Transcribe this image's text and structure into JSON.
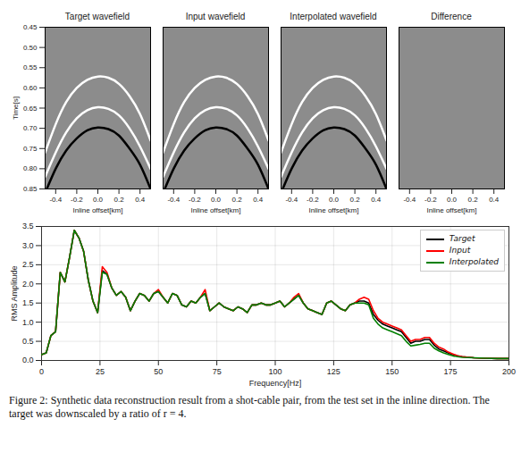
{
  "chart_data": [
    {
      "type": "image",
      "title": "Target wavefield",
      "xlabel": "Inline offset[km]",
      "ylabel": "Time[s]",
      "xlim": [
        -0.5,
        0.5
      ],
      "ylim": [
        0.45,
        0.85
      ],
      "xticks": [
        -0.4,
        -0.2,
        {
          "value": 0,
          "label": "0.0"
        },
        0.2,
        0.4
      ],
      "yticks": [
        0.45,
        {
          "value": 0.5,
          "label": "0.50"
        },
        0.55,
        {
          "value": 0.6,
          "label": "0.60"
        },
        0.65,
        {
          "value": 0.7,
          "label": "0.70"
        },
        0.75,
        {
          "value": 0.8,
          "label": "0.80"
        },
        0.85
      ],
      "events": [
        {
          "color": "white",
          "x": [
            -0.5,
            -0.4,
            -0.3,
            -0.2,
            -0.1,
            0,
            0.1,
            0.2,
            0.3,
            0.4,
            0.5
          ],
          "y": [
            0.76,
            0.69,
            0.635,
            0.6,
            0.58,
            0.572,
            0.575,
            0.59,
            0.62,
            0.665,
            0.73
          ]
        },
        {
          "color": "white",
          "x": [
            -0.5,
            -0.4,
            -0.3,
            -0.2,
            -0.1,
            0,
            0.1,
            0.2,
            0.3,
            0.4,
            0.5
          ],
          "y": [
            0.82,
            0.76,
            0.71,
            0.675,
            0.655,
            0.648,
            0.652,
            0.668,
            0.7,
            0.745,
            0.8
          ]
        },
        {
          "color": "black",
          "x": [
            -0.5,
            -0.4,
            -0.3,
            -0.2,
            -0.1,
            0,
            0.1,
            0.2,
            0.3,
            0.4,
            0.5
          ],
          "y": [
            0.86,
            0.8,
            0.755,
            0.725,
            0.705,
            0.698,
            0.702,
            0.718,
            0.75,
            0.79,
            0.85
          ]
        }
      ]
    },
    {
      "type": "image",
      "title": "Input wavefield",
      "xlabel": "Inline offset[km]",
      "tick_labels": "x",
      "xlim": [
        -0.5,
        0.5
      ],
      "ylim": [
        0.45,
        0.85
      ],
      "xticks": [
        -0.4,
        -0.2,
        {
          "value": 0,
          "label": "0.0"
        },
        0.2,
        0.4
      ],
      "events": [
        {
          "color": "white",
          "x": [
            -0.5,
            -0.4,
            -0.3,
            -0.2,
            -0.1,
            0,
            0.1,
            0.2,
            0.3,
            0.4,
            0.5
          ],
          "y": [
            0.76,
            0.69,
            0.635,
            0.6,
            0.58,
            0.572,
            0.575,
            0.59,
            0.62,
            0.665,
            0.73
          ]
        },
        {
          "color": "white",
          "x": [
            -0.5,
            -0.4,
            -0.3,
            -0.2,
            -0.1,
            0,
            0.1,
            0.2,
            0.3,
            0.4,
            0.5
          ],
          "y": [
            0.82,
            0.76,
            0.71,
            0.675,
            0.655,
            0.648,
            0.652,
            0.668,
            0.7,
            0.745,
            0.8
          ]
        },
        {
          "color": "black",
          "x": [
            -0.5,
            -0.4,
            -0.3,
            -0.2,
            -0.1,
            0,
            0.1,
            0.2,
            0.3,
            0.4,
            0.5
          ],
          "y": [
            0.86,
            0.8,
            0.755,
            0.725,
            0.705,
            0.698,
            0.702,
            0.718,
            0.75,
            0.79,
            0.85
          ]
        }
      ]
    },
    {
      "type": "image",
      "title": "Interpolated wavefield",
      "xlabel": "Inline offset[km]",
      "tick_labels": "x",
      "xlim": [
        -0.5,
        0.5
      ],
      "ylim": [
        0.45,
        0.85
      ],
      "xticks": [
        -0.4,
        -0.2,
        {
          "value": 0,
          "label": "0.0"
        },
        0.2,
        0.4
      ],
      "events": [
        {
          "color": "white",
          "x": [
            -0.5,
            -0.4,
            -0.3,
            -0.2,
            -0.1,
            0,
            0.1,
            0.2,
            0.3,
            0.4,
            0.5
          ],
          "y": [
            0.76,
            0.69,
            0.635,
            0.6,
            0.58,
            0.572,
            0.575,
            0.59,
            0.62,
            0.665,
            0.73
          ]
        },
        {
          "color": "white",
          "x": [
            -0.5,
            -0.4,
            -0.3,
            -0.2,
            -0.1,
            0,
            0.1,
            0.2,
            0.3,
            0.4,
            0.5
          ],
          "y": [
            0.82,
            0.76,
            0.71,
            0.675,
            0.655,
            0.648,
            0.652,
            0.668,
            0.7,
            0.745,
            0.8
          ]
        },
        {
          "color": "black",
          "x": [
            -0.5,
            -0.4,
            -0.3,
            -0.2,
            -0.1,
            0,
            0.1,
            0.2,
            0.3,
            0.4,
            0.5
          ],
          "y": [
            0.86,
            0.8,
            0.755,
            0.725,
            0.705,
            0.698,
            0.702,
            0.718,
            0.75,
            0.79,
            0.85
          ]
        }
      ]
    },
    {
      "type": "image",
      "title": "Difference",
      "xlabel": "Inline offset[km]",
      "tick_labels": "x",
      "xlim": [
        -0.5,
        0.5
      ],
      "ylim": [
        0.45,
        0.85
      ],
      "xticks": [
        -0.4,
        -0.2,
        {
          "value": 0,
          "label": "0.0"
        },
        0.2,
        0.4
      ],
      "events": []
    },
    {
      "type": "line",
      "xlabel": "Frequency[Hz]",
      "ylabel": "RMS Amplitude",
      "xlim": [
        0,
        200
      ],
      "ylim": [
        0,
        3.5
      ],
      "xticks": [
        0,
        25,
        50,
        75,
        100,
        125,
        150,
        175,
        200
      ],
      "yticks": [
        {
          "value": 0,
          "label": "0.0"
        },
        0.5,
        {
          "value": 1,
          "label": "1.0"
        },
        1.5,
        {
          "value": 2,
          "label": "2.0"
        },
        2.5,
        {
          "value": 3,
          "label": "3.0"
        },
        3.5
      ],
      "grid": true,
      "legend": "upper right",
      "x": [
        0,
        2,
        4,
        6,
        8,
        10,
        12,
        14,
        16,
        18,
        20,
        22,
        24,
        26,
        28,
        30,
        32,
        34,
        36,
        38,
        40,
        42,
        44,
        46,
        48,
        50,
        52,
        54,
        56,
        58,
        60,
        62,
        64,
        66,
        68,
        70,
        72,
        74,
        76,
        78,
        80,
        82,
        84,
        86,
        88,
        90,
        92,
        94,
        96,
        98,
        100,
        102,
        104,
        106,
        108,
        110,
        112,
        114,
        116,
        118,
        120,
        122,
        124,
        126,
        128,
        130,
        132,
        134,
        136,
        138,
        140,
        142,
        144,
        146,
        148,
        150,
        152,
        154,
        156,
        158,
        160,
        162,
        164,
        166,
        168,
        170,
        172,
        174,
        176,
        178,
        180,
        185,
        190,
        195,
        200
      ],
      "series": [
        {
          "name": "Target",
          "color": "black",
          "values": [
            0.15,
            0.2,
            0.65,
            0.75,
            2.3,
            2.05,
            2.7,
            3.4,
            3.2,
            2.85,
            2.1,
            1.55,
            1.25,
            2.35,
            2.25,
            1.9,
            1.7,
            1.8,
            1.65,
            1.3,
            1.55,
            1.75,
            1.7,
            1.55,
            1.75,
            1.8,
            1.65,
            1.5,
            1.75,
            1.7,
            1.45,
            1.4,
            1.55,
            1.5,
            1.65,
            1.75,
            1.3,
            1.4,
            1.5,
            1.4,
            1.35,
            1.3,
            1.4,
            1.35,
            1.25,
            1.45,
            1.45,
            1.5,
            1.45,
            1.45,
            1.5,
            1.55,
            1.4,
            1.5,
            1.6,
            1.7,
            1.5,
            1.35,
            1.3,
            1.25,
            1.2,
            1.5,
            1.55,
            1.45,
            1.35,
            1.3,
            1.45,
            1.5,
            1.55,
            1.55,
            1.5,
            1.2,
            1.05,
            0.95,
            0.9,
            0.85,
            0.8,
            0.75,
            0.6,
            0.45,
            0.5,
            0.5,
            0.55,
            0.55,
            0.4,
            0.3,
            0.25,
            0.2,
            0.15,
            0.12,
            0.1,
            0.07,
            0.06,
            0.05,
            0.05
          ]
        },
        {
          "name": "Input",
          "color": "red",
          "values": [
            0.15,
            0.2,
            0.65,
            0.75,
            2.3,
            2.05,
            2.7,
            3.4,
            3.2,
            2.85,
            2.1,
            1.55,
            1.25,
            2.45,
            2.3,
            1.9,
            1.7,
            1.8,
            1.65,
            1.3,
            1.55,
            1.75,
            1.7,
            1.55,
            1.75,
            1.85,
            1.65,
            1.5,
            1.75,
            1.7,
            1.45,
            1.4,
            1.55,
            1.5,
            1.65,
            1.85,
            1.3,
            1.4,
            1.5,
            1.4,
            1.35,
            1.3,
            1.4,
            1.35,
            1.25,
            1.45,
            1.45,
            1.5,
            1.45,
            1.45,
            1.5,
            1.55,
            1.4,
            1.5,
            1.65,
            1.75,
            1.5,
            1.35,
            1.3,
            1.25,
            1.2,
            1.5,
            1.55,
            1.45,
            1.35,
            1.3,
            1.45,
            1.5,
            1.6,
            1.65,
            1.6,
            1.3,
            1.1,
            1.0,
            0.95,
            0.9,
            0.85,
            0.8,
            0.65,
            0.5,
            0.55,
            0.55,
            0.6,
            0.6,
            0.45,
            0.35,
            0.3,
            0.22,
            0.17,
            0.12,
            0.1,
            0.07,
            0.06,
            0.05,
            0.05
          ]
        },
        {
          "name": "Interpolated",
          "color": "green",
          "values": [
            0.15,
            0.2,
            0.65,
            0.75,
            2.3,
            2.05,
            2.7,
            3.4,
            3.2,
            2.85,
            2.1,
            1.55,
            1.25,
            2.3,
            2.25,
            1.9,
            1.7,
            1.8,
            1.65,
            1.3,
            1.55,
            1.75,
            1.7,
            1.55,
            1.75,
            1.8,
            1.65,
            1.5,
            1.75,
            1.7,
            1.45,
            1.4,
            1.55,
            1.5,
            1.65,
            1.75,
            1.3,
            1.4,
            1.5,
            1.4,
            1.35,
            1.3,
            1.4,
            1.35,
            1.25,
            1.45,
            1.45,
            1.5,
            1.45,
            1.45,
            1.5,
            1.55,
            1.4,
            1.5,
            1.6,
            1.7,
            1.5,
            1.35,
            1.3,
            1.25,
            1.2,
            1.5,
            1.55,
            1.45,
            1.35,
            1.3,
            1.45,
            1.5,
            1.5,
            1.5,
            1.45,
            1.1,
            0.95,
            0.85,
            0.8,
            0.75,
            0.7,
            0.65,
            0.5,
            0.38,
            0.4,
            0.42,
            0.45,
            0.45,
            0.32,
            0.25,
            0.2,
            0.16,
            0.12,
            0.1,
            0.08,
            0.07,
            0.06,
            0.05,
            0.05
          ]
        }
      ]
    }
  ],
  "caption": "Figure 2: Synthetic data reconstruction result from a shot-cable pair, from the test set in the inline direction. The target was downscaled by a ratio of r = 4."
}
